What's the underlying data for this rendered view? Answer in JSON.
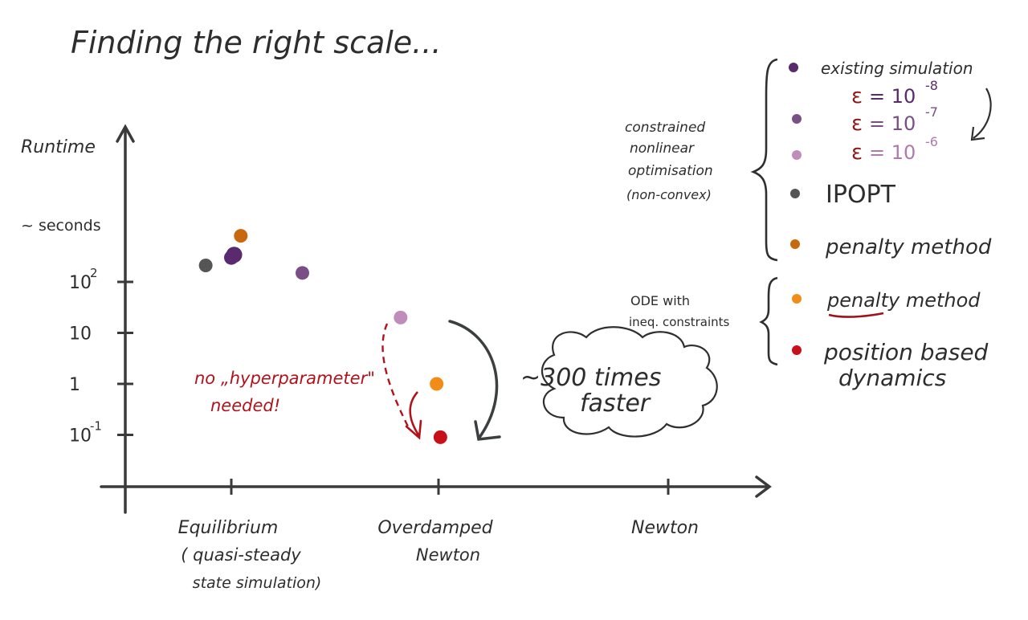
{
  "title": "Finding the right scale...",
  "chart_data": {
    "type": "scatter",
    "title": "Finding the right scale...",
    "ylabel": "Runtime",
    "yunit": "~ seconds",
    "yscale": "log",
    "ylim": [
      0.05,
      600
    ],
    "yticks": [
      {
        "value": 100,
        "label_base": "10",
        "label_exp": "2"
      },
      {
        "value": 10,
        "label_base": "10",
        "label_exp": ""
      },
      {
        "value": 1,
        "label_base": "1",
        "label_exp": ""
      },
      {
        "value": 0.1,
        "label_base": "10",
        "label_exp": "-1"
      }
    ],
    "categories": [
      {
        "label": "Equilibrium",
        "sublabel_1": "( quasi-steady",
        "sublabel_2": "state simulation)"
      },
      {
        "label": "Overdamped",
        "sublabel_1": "Newton",
        "sublabel_2": ""
      },
      {
        "label": "Newton",
        "sublabel_1": "",
        "sublabel_2": ""
      }
    ],
    "series": [
      {
        "name": "existing simulation",
        "color": "#5a2a6e",
        "points": [
          {
            "x": 0,
            "offset": 0.03,
            "y": 340
          }
        ]
      },
      {
        "name": "ε = 10^-8",
        "color": "#5a2a6e",
        "points": [
          {
            "x": 0,
            "offset": 0.0,
            "y": 300
          }
        ]
      },
      {
        "name": "ε = 10^-7",
        "color": "#7a4f86",
        "points": [
          {
            "x": 0,
            "offset": 0.75,
            "y": 150
          }
        ]
      },
      {
        "name": "ε = 10^-6",
        "color": "#bf8cbb",
        "points": [
          {
            "x": 1,
            "offset": -0.4,
            "y": 20
          }
        ]
      },
      {
        "name": "IPOPT",
        "color": "#555555",
        "points": [
          {
            "x": 0,
            "offset": -0.27,
            "y": 210
          }
        ]
      },
      {
        "name": "penalty method",
        "color": "#c8680f",
        "points": [
          {
            "x": 0,
            "offset": 0.1,
            "y": 800
          }
        ]
      },
      {
        "name": "penalty method (ODE)",
        "color": "#f28c18",
        "points": [
          {
            "x": 1,
            "offset": -0.02,
            "y": 1.0
          }
        ]
      },
      {
        "name": "position based dynamics",
        "color": "#c8101a",
        "points": [
          {
            "x": 1,
            "offset": 0.02,
            "y": 0.09
          }
        ]
      }
    ]
  },
  "legend": {
    "group1_label": [
      "constrained",
      "nonlinear",
      "optimisation",
      "(non-convex)"
    ],
    "group2_label": [
      "ODE with",
      "ineq. constraints"
    ],
    "items": [
      {
        "label": "existing simulation",
        "color": "#5a2a6e"
      },
      {
        "label": "",
        "color": "#7a4f86"
      },
      {
        "label": "",
        "color": "#bf8cbb"
      },
      {
        "label": "IPOPT",
        "color": "#555555"
      },
      {
        "label": "penalty method",
        "color": "#c8680f"
      },
      {
        "label": "penalty method",
        "color": "#f28c18"
      },
      {
        "label": "position based",
        "label2": "dynamics",
        "color": "#c8101a"
      }
    ],
    "eps_symbol": "ε",
    "eps_eq": "= 10",
    "eps_exps": [
      "-8",
      "-7",
      "-6"
    ]
  },
  "annotations": {
    "hyper_line1": "no „hyperparameter\"",
    "hyper_line2": "needed!",
    "speedup_line1": "~300 times",
    "speedup_line2": "faster"
  }
}
